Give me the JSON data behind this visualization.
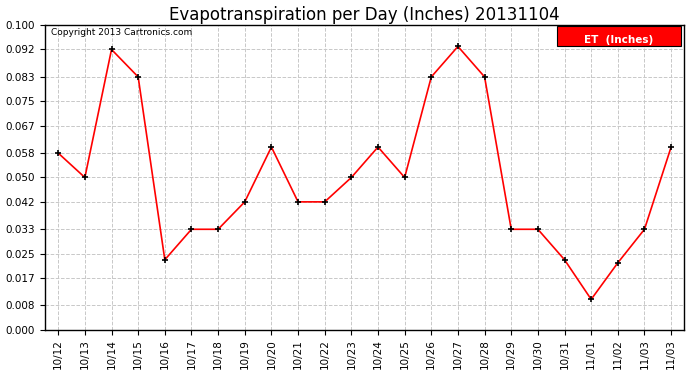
{
  "title": "Evapotranspiration per Day (Inches) 20131104",
  "copyright": "Copyright 2013 Cartronics.com",
  "legend_label": "ET  (Inches)",
  "legend_bg": "#ff0000",
  "legend_text_color": "#ffffff",
  "x_labels": [
    "10/12",
    "10/13",
    "10/14",
    "10/15",
    "10/16",
    "10/17",
    "10/18",
    "10/19",
    "10/20",
    "10/21",
    "10/22",
    "10/23",
    "10/24",
    "10/25",
    "10/26",
    "10/27",
    "10/28",
    "10/29",
    "10/30",
    "10/31",
    "11/01",
    "11/02",
    "11/03",
    "11/03"
  ],
  "y_values": [
    0.058,
    0.05,
    0.092,
    0.083,
    0.023,
    0.033,
    0.033,
    0.042,
    0.06,
    0.042,
    0.042,
    0.05,
    0.06,
    0.05,
    0.083,
    0.093,
    0.083,
    0.033,
    0.033,
    0.023,
    0.01,
    0.022,
    0.033,
    0.06
  ],
  "line_color": "#ff0000",
  "marker_color": "#000000",
  "bg_color": "#ffffff",
  "grid_color": "#c8c8c8",
  "ylim": [
    0.0,
    0.1
  ],
  "yticks": [
    0.0,
    0.008,
    0.017,
    0.025,
    0.033,
    0.042,
    0.05,
    0.058,
    0.067,
    0.075,
    0.083,
    0.092,
    0.1
  ],
  "title_fontsize": 12,
  "axis_fontsize": 7.5,
  "copyright_fontsize": 6.5
}
